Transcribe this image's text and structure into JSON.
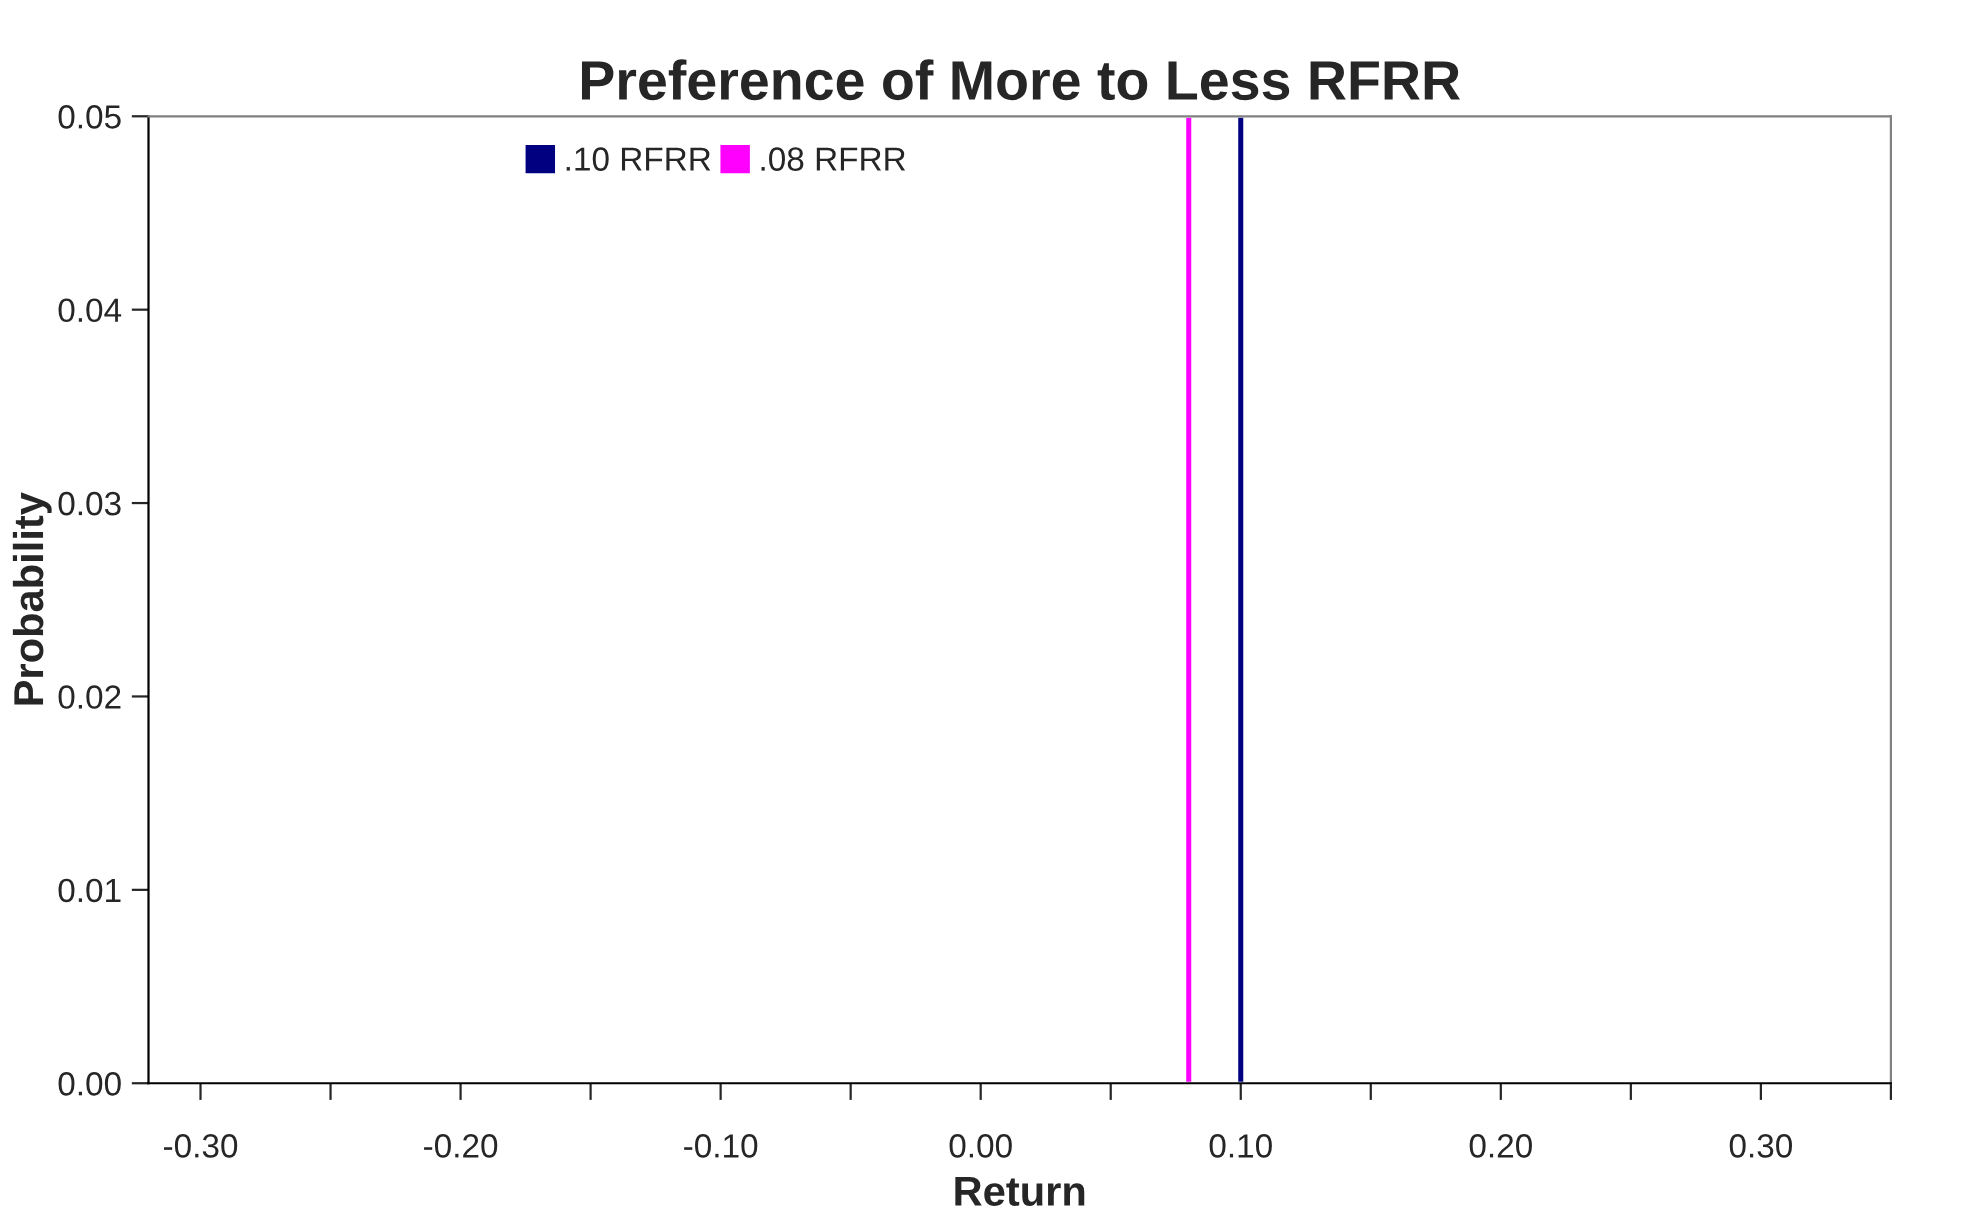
{
  "chart_data": {
    "type": "bar",
    "title": "Preference of More to Less RFRR",
    "xlabel": "Return",
    "ylabel": "Probability",
    "series": [
      {
        "name": ".10 RFRR",
        "color": "#000080",
        "x": [
          0.1
        ],
        "values": [
          0.05
        ]
      },
      {
        "name": ".08 RFRR",
        "color": "#ff00ff",
        "x": [
          0.08
        ],
        "values": [
          0.05
        ]
      }
    ],
    "xlim": [
      -0.32,
      0.35
    ],
    "xticks": [
      {
        "value": -0.3,
        "label": "-0.30"
      },
      {
        "value": -0.25,
        "label": null
      },
      {
        "value": -0.2,
        "label": "-0.20"
      },
      {
        "value": -0.15,
        "label": null
      },
      {
        "value": -0.1,
        "label": "-0.10"
      },
      {
        "value": -0.05,
        "label": null
      },
      {
        "value": 0.0,
        "label": "0.00"
      },
      {
        "value": 0.05,
        "label": null
      },
      {
        "value": 0.1,
        "label": "0.10"
      },
      {
        "value": 0.15,
        "label": null
      },
      {
        "value": 0.2,
        "label": "0.20"
      },
      {
        "value": 0.25,
        "label": null
      },
      {
        "value": 0.3,
        "label": "0.30"
      },
      {
        "value": 0.35,
        "label": null
      }
    ],
    "ylim": [
      0,
      0.05
    ],
    "yticks": [
      {
        "value": 0,
        "label": "0.00"
      },
      {
        "value": 0.01,
        "label": "0.01"
      },
      {
        "value": 0.02,
        "label": "0.02"
      },
      {
        "value": 0.03,
        "label": "0.03"
      },
      {
        "value": 0.04,
        "label": "0.04"
      },
      {
        "value": 0.05,
        "label": "0.05"
      }
    ],
    "grid": false,
    "legend": "top left"
  }
}
